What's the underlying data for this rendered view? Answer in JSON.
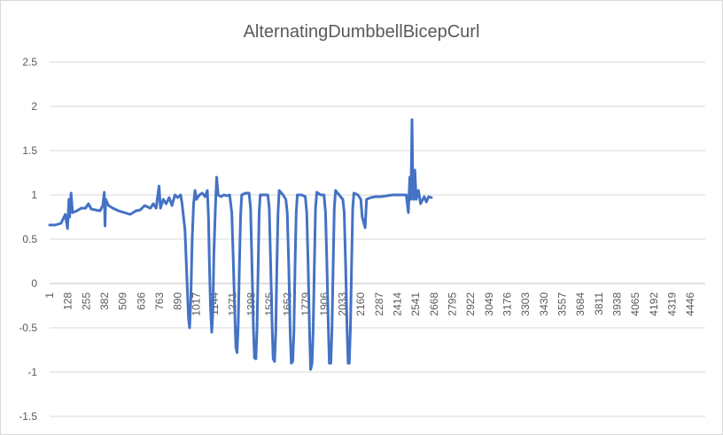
{
  "chart_data": {
    "type": "line",
    "title": "AlternatingDumbbellBicepCurl",
    "xlabel": "",
    "ylabel": "",
    "x_range": [
      1,
      4550
    ],
    "ylim": [
      -1.5,
      2.5
    ],
    "y_ticks": [
      2.5,
      2,
      1.5,
      1,
      0.5,
      0,
      -0.5,
      -1,
      -1.5
    ],
    "y_tick_labels": [
      "2.5",
      "2",
      "1.5",
      "1",
      "0.5",
      "0",
      "-0.5",
      "-1",
      "-1.5"
    ],
    "x_tick_labels": [
      "1",
      "128",
      "255",
      "382",
      "509",
      "636",
      "763",
      "890",
      "1017",
      "1144",
      "1271",
      "1398",
      "1525",
      "1652",
      "1779",
      "1906",
      "2033",
      "2160",
      "2287",
      "2414",
      "2541",
      "2668",
      "2795",
      "2922",
      "3049",
      "3176",
      "3303",
      "3430",
      "3557",
      "3684",
      "3811",
      "3938",
      "4065",
      "4192",
      "4319",
      "4446"
    ],
    "x_tick_step": 127,
    "grid": "horizontal",
    "legend": "none",
    "series": [
      {
        "color": "#4472c4",
        "points": [
          [
            1,
            0.66
          ],
          [
            40,
            0.66
          ],
          [
            80,
            0.68
          ],
          [
            110,
            0.78
          ],
          [
            125,
            0.62
          ],
          [
            135,
            0.95
          ],
          [
            140,
            0.75
          ],
          [
            150,
            1.02
          ],
          [
            160,
            0.8
          ],
          [
            190,
            0.82
          ],
          [
            220,
            0.85
          ],
          [
            250,
            0.85
          ],
          [
            270,
            0.9
          ],
          [
            290,
            0.84
          ],
          [
            320,
            0.83
          ],
          [
            350,
            0.82
          ],
          [
            370,
            0.88
          ],
          [
            380,
            1.03
          ],
          [
            385,
            0.65
          ],
          [
            390,
            0.95
          ],
          [
            410,
            0.88
          ],
          [
            440,
            0.85
          ],
          [
            480,
            0.82
          ],
          [
            520,
            0.8
          ],
          [
            560,
            0.78
          ],
          [
            600,
            0.82
          ],
          [
            630,
            0.83
          ],
          [
            660,
            0.88
          ],
          [
            700,
            0.85
          ],
          [
            720,
            0.9
          ],
          [
            740,
            0.85
          ],
          [
            760,
            1.1
          ],
          [
            770,
            0.85
          ],
          [
            790,
            0.95
          ],
          [
            810,
            0.9
          ],
          [
            830,
            0.97
          ],
          [
            850,
            0.88
          ],
          [
            870,
            1.0
          ],
          [
            890,
            0.97
          ],
          [
            910,
            1.0
          ],
          [
            920,
            0.9
          ],
          [
            940,
            0.6
          ],
          [
            955,
            0.0
          ],
          [
            965,
            -0.4
          ],
          [
            972,
            -0.5
          ],
          [
            980,
            -0.2
          ],
          [
            990,
            0.5
          ],
          [
            1000,
            0.9
          ],
          [
            1010,
            1.05
          ],
          [
            1020,
            0.95
          ],
          [
            1040,
            1.0
          ],
          [
            1060,
            1.02
          ],
          [
            1080,
            0.98
          ],
          [
            1095,
            1.05
          ],
          [
            1103,
            0.75
          ],
          [
            1110,
            0.2
          ],
          [
            1118,
            -0.3
          ],
          [
            1126,
            -0.55
          ],
          [
            1134,
            -0.3
          ],
          [
            1140,
            0.3
          ],
          [
            1150,
            0.8
          ],
          [
            1160,
            1.2
          ],
          [
            1170,
            1.0
          ],
          [
            1190,
            0.98
          ],
          [
            1210,
            1.0
          ],
          [
            1230,
            0.99
          ],
          [
            1250,
            1.0
          ],
          [
            1265,
            0.8
          ],
          [
            1275,
            0.3
          ],
          [
            1285,
            -0.3
          ],
          [
            1293,
            -0.72
          ],
          [
            1302,
            -0.78
          ],
          [
            1310,
            -0.45
          ],
          [
            1318,
            0.2
          ],
          [
            1326,
            0.75
          ],
          [
            1334,
            1.0
          ],
          [
            1360,
            1.02
          ],
          [
            1385,
            1.02
          ],
          [
            1395,
            0.85
          ],
          [
            1405,
            0.2
          ],
          [
            1415,
            -0.5
          ],
          [
            1422,
            -0.84
          ],
          [
            1432,
            -0.85
          ],
          [
            1440,
            -0.5
          ],
          [
            1448,
            0.2
          ],
          [
            1455,
            0.8
          ],
          [
            1462,
            1.0
          ],
          [
            1490,
            1.0
          ],
          [
            1515,
            1.0
          ],
          [
            1525,
            0.85
          ],
          [
            1535,
            0.2
          ],
          [
            1545,
            -0.5
          ],
          [
            1552,
            -0.85
          ],
          [
            1562,
            -0.88
          ],
          [
            1570,
            -0.55
          ],
          [
            1578,
            0.2
          ],
          [
            1586,
            0.8
          ],
          [
            1594,
            1.05
          ],
          [
            1620,
            1.0
          ],
          [
            1640,
            0.95
          ],
          [
            1650,
            0.8
          ],
          [
            1660,
            0.2
          ],
          [
            1670,
            -0.55
          ],
          [
            1678,
            -0.9
          ],
          [
            1688,
            -0.88
          ],
          [
            1696,
            -0.55
          ],
          [
            1704,
            0.2
          ],
          [
            1712,
            0.8
          ],
          [
            1720,
            1.0
          ],
          [
            1750,
            1.0
          ],
          [
            1775,
            0.98
          ],
          [
            1785,
            0.8
          ],
          [
            1795,
            0.2
          ],
          [
            1805,
            -0.6
          ],
          [
            1812,
            -0.97
          ],
          [
            1822,
            -0.9
          ],
          [
            1830,
            -0.5
          ],
          [
            1838,
            0.2
          ],
          [
            1846,
            0.85
          ],
          [
            1855,
            1.03
          ],
          [
            1880,
            1.0
          ],
          [
            1905,
            1.0
          ],
          [
            1915,
            0.8
          ],
          [
            1925,
            0.2
          ],
          [
            1935,
            -0.5
          ],
          [
            1942,
            -0.9
          ],
          [
            1952,
            -0.9
          ],
          [
            1960,
            -0.5
          ],
          [
            1968,
            0.2
          ],
          [
            1976,
            0.85
          ],
          [
            1985,
            1.05
          ],
          [
            2010,
            1.0
          ],
          [
            2035,
            0.95
          ],
          [
            2045,
            0.8
          ],
          [
            2055,
            0.2
          ],
          [
            2065,
            -0.55
          ],
          [
            2072,
            -0.9
          ],
          [
            2080,
            -0.9
          ],
          [
            2088,
            -0.5
          ],
          [
            2096,
            0.2
          ],
          [
            2104,
            0.85
          ],
          [
            2112,
            1.02
          ],
          [
            2140,
            1.0
          ],
          [
            2160,
            0.95
          ],
          [
            2170,
            0.75
          ],
          [
            2190,
            0.63
          ],
          [
            2200,
            0.95
          ],
          [
            2230,
            0.97
          ],
          [
            2260,
            0.98
          ],
          [
            2300,
            0.98
          ],
          [
            2340,
            0.99
          ],
          [
            2380,
            1.0
          ],
          [
            2420,
            1.0
          ],
          [
            2440,
            1.0
          ],
          [
            2460,
            1.0
          ],
          [
            2475,
            1.0
          ],
          [
            2490,
            0.8
          ],
          [
            2500,
            1.2
          ],
          [
            2508,
            0.95
          ],
          [
            2515,
            1.85
          ],
          [
            2520,
            1.2
          ],
          [
            2527,
            0.95
          ],
          [
            2535,
            1.28
          ],
          [
            2545,
            0.95
          ],
          [
            2560,
            1.05
          ],
          [
            2575,
            0.9
          ],
          [
            2590,
            0.95
          ],
          [
            2600,
            0.98
          ],
          [
            2615,
            0.92
          ],
          [
            2630,
            0.98
          ],
          [
            2650,
            0.97
          ]
        ]
      }
    ]
  }
}
